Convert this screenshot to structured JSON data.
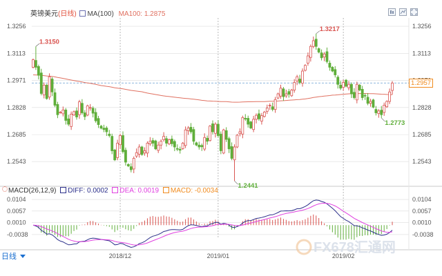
{
  "header": {
    "symbol": "英镑美元",
    "period_tag": "(日线)",
    "ma_label": "MA(100)",
    "ma_value_label": "MA100: 1.2875"
  },
  "macd_header": {
    "name": "MACD(26,12,9)",
    "diff": "DIFF: 0.0002",
    "dea": "DEA: 0.0019",
    "macd": "MACD: -0.0034"
  },
  "period_button": "日线",
  "watermark": {
    "text": "FX678汇通网"
  },
  "colors": {
    "up": "#d9534f",
    "down": "#5fae3a",
    "ma": "#e07060",
    "diff": "#2b2f8a",
    "dea": "#e040e0",
    "last_price": "#f08a1c",
    "grid": "#dcdcdc"
  },
  "chart_data": {
    "type": "candlestick",
    "price_axis_ticks": [
      1.3256,
      1.3113,
      1.2971,
      1.2828,
      1.2685,
      1.2543
    ],
    "price_range": [
      1.242,
      1.33
    ],
    "macd_axis_ticks": [
      0.0104,
      0.0057,
      0.001,
      -0.0038
    ],
    "macd_range": [
      -0.0055,
      0.0118
    ],
    "x_labels": [
      {
        "index": 32,
        "label": "2018/12"
      },
      {
        "index": 68,
        "label": "2019/01"
      },
      {
        "index": 114,
        "label": "2019/02"
      }
    ],
    "last_price": "1.2957",
    "annotations": [
      {
        "index": 1,
        "value": 1.315,
        "label": "1.3150",
        "kind": "high"
      },
      {
        "index": 74,
        "value": 1.2441,
        "label": "1.2441",
        "kind": "low"
      },
      {
        "index": 104,
        "value": 1.3217,
        "label": "1.3217",
        "kind": "high"
      },
      {
        "index": 128,
        "value": 1.2773,
        "label": "1.2773",
        "kind": "low"
      }
    ],
    "close_series": [
      1.308,
      1.304,
      1.2998,
      1.2902,
      1.2946,
      1.2875,
      1.299,
      1.291,
      1.284,
      1.279,
      1.2803,
      1.2815,
      1.276,
      1.274,
      1.2793,
      1.2806,
      1.2778,
      1.2858,
      1.28,
      1.278,
      1.2837,
      1.2828,
      1.2798,
      1.2758,
      1.2738,
      1.2719,
      1.2712,
      1.27,
      1.268,
      1.26,
      1.2552,
      1.264,
      1.268,
      1.2595,
      1.254,
      1.252,
      1.25,
      1.256,
      1.259,
      1.262,
      1.258,
      1.26,
      1.264,
      1.265,
      1.264,
      1.261,
      1.263,
      1.265,
      1.2676,
      1.264,
      1.2658,
      1.2637,
      1.262,
      1.2608,
      1.2603,
      1.264,
      1.271,
      1.272,
      1.27,
      1.265,
      1.263,
      1.262,
      1.2621,
      1.267,
      1.265,
      1.273,
      1.27,
      1.274,
      1.268,
      1.26,
      1.271,
      1.266,
      1.261,
      1.256,
      1.262,
      1.2682,
      1.27,
      1.2775,
      1.2767,
      1.274,
      1.272,
      1.2766,
      1.2787,
      1.2768,
      1.2785,
      1.2804,
      1.2825,
      1.284,
      1.2818,
      1.287,
      1.29,
      1.293,
      1.2885,
      1.29,
      1.2898,
      1.292,
      1.296,
      1.299,
      1.296,
      1.302,
      1.305,
      1.31,
      1.315,
      1.318,
      1.315,
      1.312,
      1.309,
      1.311,
      1.307,
      1.304,
      1.302,
      1.3,
      1.295,
      1.293,
      1.296,
      1.294,
      1.295,
      1.29,
      1.288,
      1.295,
      1.292,
      1.288,
      1.289,
      1.285,
      1.286,
      1.283,
      1.28,
      1.281,
      1.279,
      1.284,
      1.286,
      1.291,
      1.2957
    ],
    "ma100_endpoints": {
      "start": 1.3,
      "end": 1.2875
    }
  }
}
